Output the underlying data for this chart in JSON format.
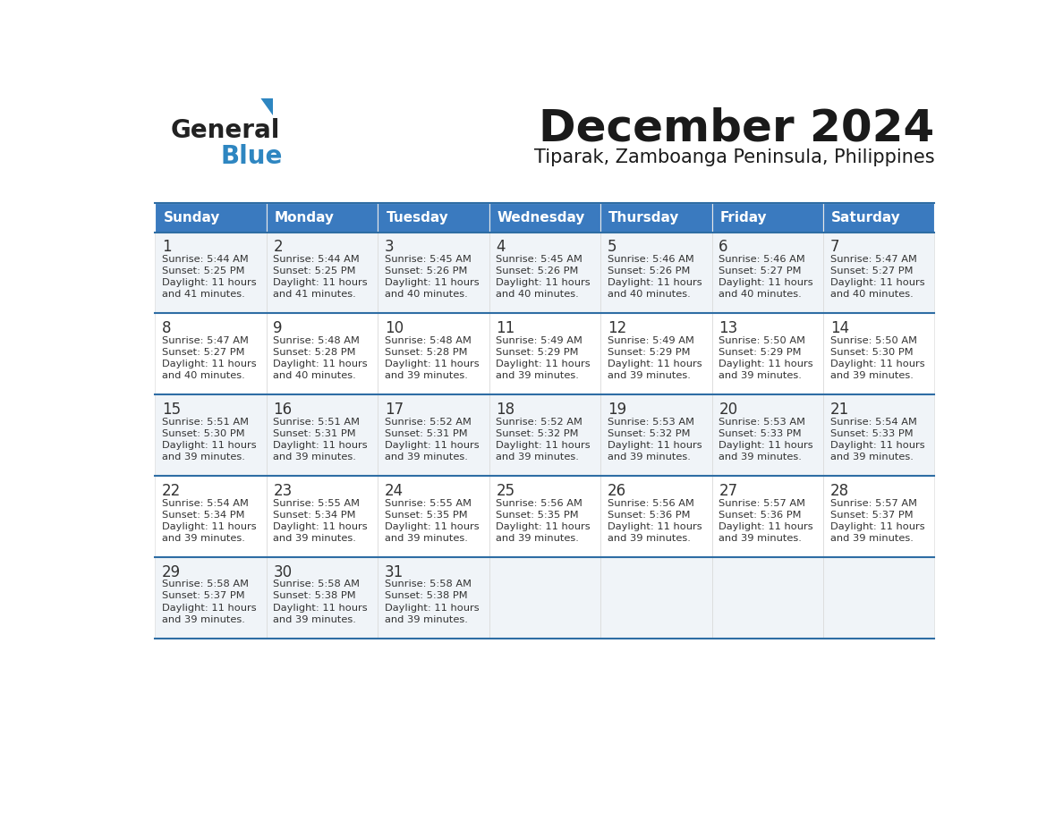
{
  "title": "December 2024",
  "subtitle": "Tiparak, Zamboanga Peninsula, Philippines",
  "header_color": "#3a7abf",
  "header_text_color": "#ffffff",
  "weekdays": [
    "Sunday",
    "Monday",
    "Tuesday",
    "Wednesday",
    "Thursday",
    "Friday",
    "Saturday"
  ],
  "row_bg_colors": [
    "#f0f4f8",
    "#ffffff"
  ],
  "text_color": "#333333",
  "divider_color": "#2e6da4",
  "days": [
    {
      "day": 1,
      "col": 0,
      "row": 0,
      "sunrise": "5:44 AM",
      "sunset": "5:25 PM",
      "daylight": "11 hours and 41 minutes."
    },
    {
      "day": 2,
      "col": 1,
      "row": 0,
      "sunrise": "5:44 AM",
      "sunset": "5:25 PM",
      "daylight": "11 hours and 41 minutes."
    },
    {
      "day": 3,
      "col": 2,
      "row": 0,
      "sunrise": "5:45 AM",
      "sunset": "5:26 PM",
      "daylight": "11 hours and 40 minutes."
    },
    {
      "day": 4,
      "col": 3,
      "row": 0,
      "sunrise": "5:45 AM",
      "sunset": "5:26 PM",
      "daylight": "11 hours and 40 minutes."
    },
    {
      "day": 5,
      "col": 4,
      "row": 0,
      "sunrise": "5:46 AM",
      "sunset": "5:26 PM",
      "daylight": "11 hours and 40 minutes."
    },
    {
      "day": 6,
      "col": 5,
      "row": 0,
      "sunrise": "5:46 AM",
      "sunset": "5:27 PM",
      "daylight": "11 hours and 40 minutes."
    },
    {
      "day": 7,
      "col": 6,
      "row": 0,
      "sunrise": "5:47 AM",
      "sunset": "5:27 PM",
      "daylight": "11 hours and 40 minutes."
    },
    {
      "day": 8,
      "col": 0,
      "row": 1,
      "sunrise": "5:47 AM",
      "sunset": "5:27 PM",
      "daylight": "11 hours and 40 minutes."
    },
    {
      "day": 9,
      "col": 1,
      "row": 1,
      "sunrise": "5:48 AM",
      "sunset": "5:28 PM",
      "daylight": "11 hours and 40 minutes."
    },
    {
      "day": 10,
      "col": 2,
      "row": 1,
      "sunrise": "5:48 AM",
      "sunset": "5:28 PM",
      "daylight": "11 hours and 39 minutes."
    },
    {
      "day": 11,
      "col": 3,
      "row": 1,
      "sunrise": "5:49 AM",
      "sunset": "5:29 PM",
      "daylight": "11 hours and 39 minutes."
    },
    {
      "day": 12,
      "col": 4,
      "row": 1,
      "sunrise": "5:49 AM",
      "sunset": "5:29 PM",
      "daylight": "11 hours and 39 minutes."
    },
    {
      "day": 13,
      "col": 5,
      "row": 1,
      "sunrise": "5:50 AM",
      "sunset": "5:29 PM",
      "daylight": "11 hours and 39 minutes."
    },
    {
      "day": 14,
      "col": 6,
      "row": 1,
      "sunrise": "5:50 AM",
      "sunset": "5:30 PM",
      "daylight": "11 hours and 39 minutes."
    },
    {
      "day": 15,
      "col": 0,
      "row": 2,
      "sunrise": "5:51 AM",
      "sunset": "5:30 PM",
      "daylight": "11 hours and 39 minutes."
    },
    {
      "day": 16,
      "col": 1,
      "row": 2,
      "sunrise": "5:51 AM",
      "sunset": "5:31 PM",
      "daylight": "11 hours and 39 minutes."
    },
    {
      "day": 17,
      "col": 2,
      "row": 2,
      "sunrise": "5:52 AM",
      "sunset": "5:31 PM",
      "daylight": "11 hours and 39 minutes."
    },
    {
      "day": 18,
      "col": 3,
      "row": 2,
      "sunrise": "5:52 AM",
      "sunset": "5:32 PM",
      "daylight": "11 hours and 39 minutes."
    },
    {
      "day": 19,
      "col": 4,
      "row": 2,
      "sunrise": "5:53 AM",
      "sunset": "5:32 PM",
      "daylight": "11 hours and 39 minutes."
    },
    {
      "day": 20,
      "col": 5,
      "row": 2,
      "sunrise": "5:53 AM",
      "sunset": "5:33 PM",
      "daylight": "11 hours and 39 minutes."
    },
    {
      "day": 21,
      "col": 6,
      "row": 2,
      "sunrise": "5:54 AM",
      "sunset": "5:33 PM",
      "daylight": "11 hours and 39 minutes."
    },
    {
      "day": 22,
      "col": 0,
      "row": 3,
      "sunrise": "5:54 AM",
      "sunset": "5:34 PM",
      "daylight": "11 hours and 39 minutes."
    },
    {
      "day": 23,
      "col": 1,
      "row": 3,
      "sunrise": "5:55 AM",
      "sunset": "5:34 PM",
      "daylight": "11 hours and 39 minutes."
    },
    {
      "day": 24,
      "col": 2,
      "row": 3,
      "sunrise": "5:55 AM",
      "sunset": "5:35 PM",
      "daylight": "11 hours and 39 minutes."
    },
    {
      "day": 25,
      "col": 3,
      "row": 3,
      "sunrise": "5:56 AM",
      "sunset": "5:35 PM",
      "daylight": "11 hours and 39 minutes."
    },
    {
      "day": 26,
      "col": 4,
      "row": 3,
      "sunrise": "5:56 AM",
      "sunset": "5:36 PM",
      "daylight": "11 hours and 39 minutes."
    },
    {
      "day": 27,
      "col": 5,
      "row": 3,
      "sunrise": "5:57 AM",
      "sunset": "5:36 PM",
      "daylight": "11 hours and 39 minutes."
    },
    {
      "day": 28,
      "col": 6,
      "row": 3,
      "sunrise": "5:57 AM",
      "sunset": "5:37 PM",
      "daylight": "11 hours and 39 minutes."
    },
    {
      "day": 29,
      "col": 0,
      "row": 4,
      "sunrise": "5:58 AM",
      "sunset": "5:37 PM",
      "daylight": "11 hours and 39 minutes."
    },
    {
      "day": 30,
      "col": 1,
      "row": 4,
      "sunrise": "5:58 AM",
      "sunset": "5:38 PM",
      "daylight": "11 hours and 39 minutes."
    },
    {
      "day": 31,
      "col": 2,
      "row": 4,
      "sunrise": "5:58 AM",
      "sunset": "5:38 PM",
      "daylight": "11 hours and 39 minutes."
    }
  ]
}
